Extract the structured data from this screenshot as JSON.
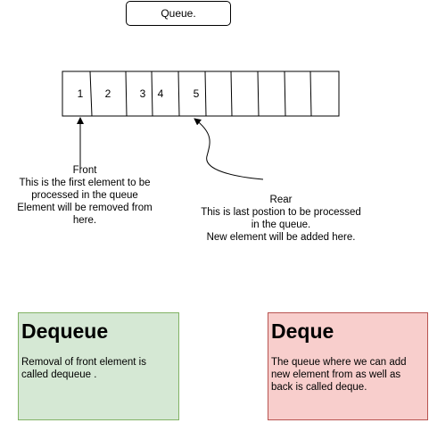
{
  "title": "Queue.",
  "queue": {
    "cells": [
      "1",
      "2",
      "",
      "3",
      "4",
      "5",
      "",
      "",
      "",
      "",
      ""
    ]
  },
  "front": {
    "heading": "Front",
    "lines": [
      "This is the first element to be",
      "processed in the queue",
      "Element will be removed from",
      "here."
    ]
  },
  "rear": {
    "heading": "Rear",
    "lines": [
      "This is last postion to be processed",
      "in the queue.",
      "New element will be added here."
    ]
  },
  "cards": {
    "dequeue": {
      "heading": "Dequeue",
      "text": "Removal of front element is called dequeue .",
      "fill": "#d5e8d4",
      "border": "#82b366"
    },
    "deque": {
      "heading": "Deque",
      "text": "The queue where we can add new element from as well as back is called deque.",
      "fill": "#f8cecc",
      "border": "#b85450"
    }
  }
}
